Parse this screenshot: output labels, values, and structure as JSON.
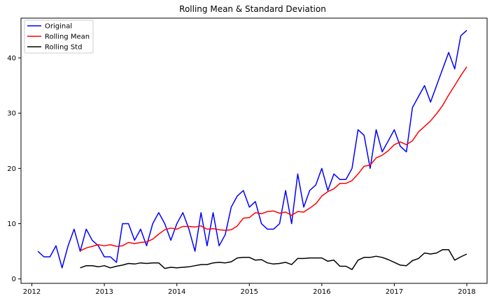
{
  "chart_data": {
    "type": "line",
    "title": "Rolling Mean & Standard Deviation",
    "xlabel": "",
    "ylabel": "",
    "xlim": [
      2011.85,
      2018.28
    ],
    "ylim": [
      -0.8,
      47.2
    ],
    "x_ticks": [
      2012,
      2013,
      2014,
      2015,
      2016,
      2017,
      2018
    ],
    "y_ticks": [
      0,
      10,
      20,
      30,
      40
    ],
    "grid": false,
    "legend_placement": "top-left",
    "series": [
      {
        "name": "Original",
        "color": "#0000ff",
        "x": [
          2012.083,
          2012.167,
          2012.25,
          2012.333,
          2012.417,
          2012.5,
          2012.583,
          2012.667,
          2012.75,
          2012.833,
          2012.917,
          2013.0,
          2013.083,
          2013.167,
          2013.25,
          2013.333,
          2013.417,
          2013.5,
          2013.583,
          2013.667,
          2013.75,
          2013.833,
          2013.917,
          2014.0,
          2014.083,
          2014.167,
          2014.25,
          2014.333,
          2014.417,
          2014.5,
          2014.583,
          2014.667,
          2014.75,
          2014.833,
          2014.917,
          2015.0,
          2015.083,
          2015.167,
          2015.25,
          2015.333,
          2015.417,
          2015.5,
          2015.583,
          2015.667,
          2015.75,
          2015.833,
          2015.917,
          2016.0,
          2016.083,
          2016.167,
          2016.25,
          2016.333,
          2016.417,
          2016.5,
          2016.583,
          2016.667,
          2016.75,
          2016.833,
          2016.917,
          2017.0,
          2017.083,
          2017.167,
          2017.25,
          2017.333,
          2017.417,
          2017.5,
          2017.583,
          2017.667,
          2017.75,
          2017.833,
          2017.917,
          2018.0
        ],
        "values": [
          5,
          4,
          4,
          6,
          2,
          6,
          9,
          5,
          9,
          7,
          6,
          4,
          4,
          3,
          10,
          10,
          7,
          9,
          6,
          10,
          12,
          10,
          7,
          10,
          12,
          9,
          5,
          12,
          6,
          12,
          6,
          8,
          13,
          15,
          16,
          13,
          14,
          10,
          9,
          9,
          10,
          16,
          10,
          19,
          13,
          16,
          17,
          20,
          16,
          19,
          18,
          18,
          20,
          27,
          26,
          20,
          27,
          23,
          25,
          27,
          24,
          23,
          31,
          33,
          35,
          32,
          35,
          38,
          41,
          38,
          44,
          45
        ]
      },
      {
        "name": "Rolling Mean",
        "color": "#ff0000",
        "x": [
          2012.667,
          2012.75,
          2012.833,
          2012.917,
          2013.0,
          2013.083,
          2013.167,
          2013.25,
          2013.333,
          2013.417,
          2013.5,
          2013.583,
          2013.667,
          2013.75,
          2013.833,
          2013.917,
          2014.0,
          2014.083,
          2014.167,
          2014.25,
          2014.333,
          2014.417,
          2014.5,
          2014.583,
          2014.667,
          2014.75,
          2014.833,
          2014.917,
          2015.0,
          2015.083,
          2015.167,
          2015.25,
          2015.333,
          2015.417,
          2015.5,
          2015.583,
          2015.667,
          2015.75,
          2015.833,
          2015.917,
          2016.0,
          2016.083,
          2016.167,
          2016.25,
          2016.333,
          2016.417,
          2016.5,
          2016.583,
          2016.667,
          2016.75,
          2016.833,
          2016.917,
          2017.0,
          2017.083,
          2017.167,
          2017.25,
          2017.333,
          2017.417,
          2017.5,
          2017.583,
          2017.667,
          2017.75,
          2017.833,
          2017.917,
          2018.0
        ],
        "values": [
          5.1,
          5.6,
          5.9,
          6.2,
          6.0,
          6.2,
          5.9,
          6.0,
          6.6,
          6.4,
          6.6,
          6.7,
          7.2,
          8.1,
          8.9,
          9.2,
          9.0,
          9.5,
          9.5,
          9.4,
          9.6,
          9.0,
          9.1,
          8.9,
          8.8,
          8.9,
          9.6,
          11.0,
          11.1,
          12.0,
          11.8,
          12.2,
          12.3,
          11.9,
          12.1,
          11.5,
          12.2,
          12.1,
          12.8,
          13.6,
          15.0,
          15.8,
          16.3,
          17.3,
          17.3,
          17.8,
          19.0,
          20.4,
          20.6,
          21.9,
          22.4,
          23.2,
          24.3,
          24.8,
          24.3,
          25.0,
          26.6,
          27.6,
          28.6,
          29.9,
          31.4,
          33.3,
          35.0,
          36.8,
          38.4
        ]
      },
      {
        "name": "Rolling Std",
        "color": "#000000",
        "x": [
          2012.667,
          2012.75,
          2012.833,
          2012.917,
          2013.0,
          2013.083,
          2013.167,
          2013.25,
          2013.333,
          2013.417,
          2013.5,
          2013.583,
          2013.667,
          2013.75,
          2013.833,
          2013.917,
          2014.0,
          2014.083,
          2014.167,
          2014.25,
          2014.333,
          2014.417,
          2014.5,
          2014.583,
          2014.667,
          2014.75,
          2014.833,
          2014.917,
          2015.0,
          2015.083,
          2015.167,
          2015.25,
          2015.333,
          2015.417,
          2015.5,
          2015.583,
          2015.667,
          2015.75,
          2015.833,
          2015.917,
          2016.0,
          2016.083,
          2016.167,
          2016.25,
          2016.333,
          2016.417,
          2016.5,
          2016.583,
          2016.667,
          2016.75,
          2016.833,
          2016.917,
          2017.0,
          2017.083,
          2017.167,
          2017.25,
          2017.333,
          2017.417,
          2017.5,
          2017.583,
          2017.667,
          2017.75,
          2017.833,
          2017.917,
          2018.0
        ],
        "values": [
          2.0,
          2.4,
          2.4,
          2.2,
          2.4,
          2.0,
          2.3,
          2.5,
          2.8,
          2.7,
          2.9,
          2.8,
          2.9,
          2.9,
          1.9,
          2.1,
          2.0,
          2.1,
          2.2,
          2.4,
          2.6,
          2.6,
          2.9,
          3.0,
          2.9,
          3.1,
          3.8,
          3.9,
          3.9,
          3.4,
          3.5,
          2.9,
          2.7,
          2.8,
          3.0,
          2.6,
          3.7,
          3.7,
          3.8,
          3.8,
          3.8,
          3.2,
          3.4,
          2.3,
          2.3,
          1.7,
          3.4,
          3.9,
          3.9,
          4.1,
          3.9,
          3.5,
          3.0,
          2.5,
          2.4,
          3.3,
          3.7,
          4.7,
          4.5,
          4.7,
          5.3,
          5.3,
          3.4,
          4.0,
          4.5
        ]
      }
    ]
  }
}
